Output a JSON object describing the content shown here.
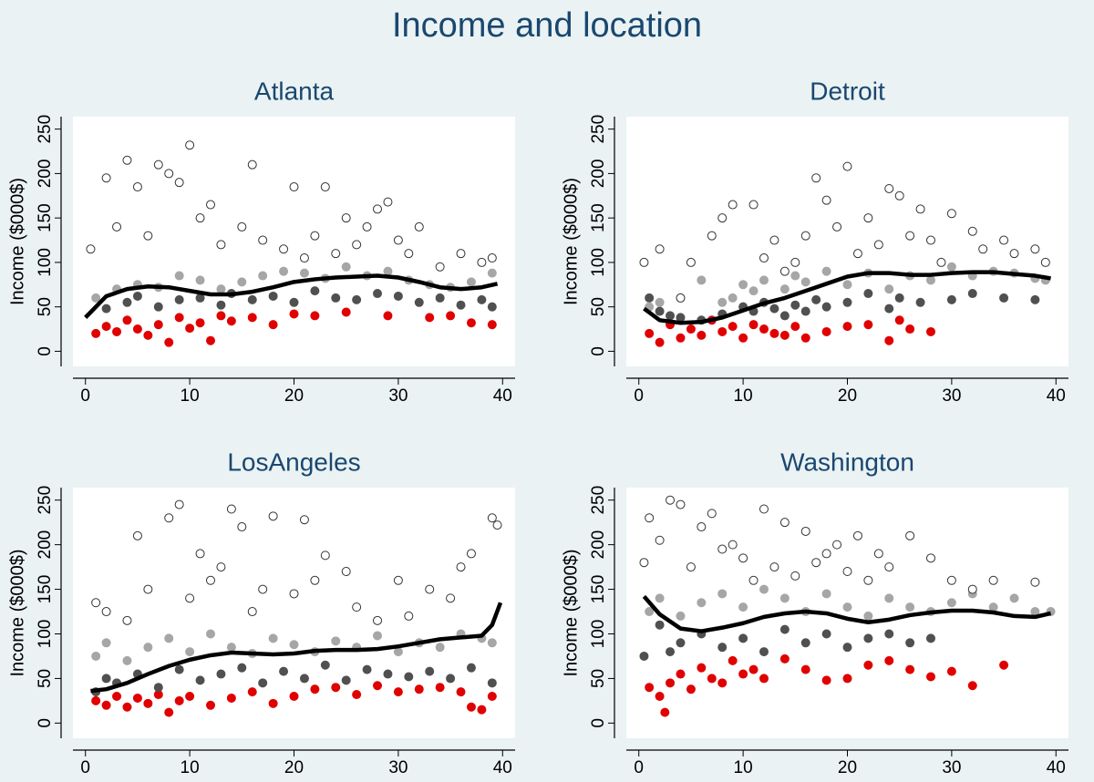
{
  "title": "Income and location",
  "chart_data": [
    {
      "type": "scatter",
      "title": "Atlanta",
      "ylabel": "Income ($000$)",
      "xlim": [
        -1.2,
        41.2
      ],
      "ylim": [
        -17,
        264
      ],
      "xticks": [
        0,
        10,
        20,
        30,
        40
      ],
      "yticks": [
        0,
        50,
        100,
        150,
        200,
        250
      ],
      "series": [
        {
          "color": "#e00000",
          "x": [
            1,
            2,
            3,
            4,
            5,
            6,
            7,
            8,
            9,
            10,
            11,
            12,
            13,
            14,
            16,
            18,
            20,
            22,
            25,
            29,
            33,
            35,
            37,
            39
          ],
          "values": [
            20,
            28,
            22,
            35,
            25,
            18,
            30,
            10,
            38,
            26,
            32,
            12,
            40,
            34,
            38,
            30,
            42,
            40,
            44,
            40,
            38,
            40,
            32,
            30
          ]
        },
        {
          "color": "#505050",
          "x": [
            2,
            4,
            5,
            7,
            9,
            11,
            13,
            14,
            16,
            18,
            20,
            22,
            24,
            26,
            28,
            30,
            32,
            34,
            36,
            38,
            39
          ],
          "values": [
            48,
            55,
            62,
            50,
            58,
            60,
            52,
            65,
            58,
            62,
            55,
            68,
            60,
            58,
            65,
            62,
            55,
            60,
            52,
            58,
            50
          ]
        },
        {
          "color": "#a6a6a6",
          "x": [
            1,
            3,
            5,
            7,
            9,
            11,
            13,
            15,
            17,
            19,
            21,
            23,
            25,
            27,
            29,
            31,
            33,
            35,
            37,
            39
          ],
          "values": [
            60,
            70,
            75,
            72,
            85,
            80,
            70,
            78,
            85,
            90,
            88,
            82,
            95,
            85,
            90,
            80,
            75,
            72,
            78,
            88
          ]
        },
        {
          "color": "#ffffff",
          "edgecolor": "#333333",
          "x": [
            0.5,
            2,
            3,
            4,
            5,
            6,
            7,
            8,
            9,
            10,
            11,
            12,
            13,
            15,
            16,
            17,
            19,
            20,
            21,
            22,
            23,
            24,
            25,
            26,
            27,
            28,
            29,
            30,
            31,
            32,
            34,
            36,
            38,
            39
          ],
          "values": [
            115,
            195,
            140,
            215,
            185,
            130,
            210,
            200,
            190,
            232,
            150,
            165,
            120,
            140,
            210,
            125,
            115,
            185,
            105,
            130,
            185,
            110,
            150,
            120,
            140,
            160,
            168,
            125,
            110,
            140,
            95,
            110,
            100,
            105
          ]
        },
        {
          "color": "#000000",
          "mode": "line",
          "x": [
            0,
            2,
            4,
            6,
            8,
            10,
            12,
            14,
            16,
            18,
            20,
            22,
            24,
            26,
            28,
            30,
            32,
            34,
            36,
            38,
            39.5
          ],
          "values": [
            38,
            62,
            70,
            73,
            72,
            68,
            64,
            64,
            67,
            72,
            78,
            81,
            83,
            84,
            85,
            83,
            78,
            72,
            70,
            72,
            76
          ]
        }
      ]
    },
    {
      "type": "scatter",
      "title": "Detroit",
      "ylabel": "Income ($000$)",
      "xlim": [
        -1.2,
        41.2
      ],
      "ylim": [
        -17,
        264
      ],
      "xticks": [
        0,
        10,
        20,
        30,
        40
      ],
      "yticks": [
        0,
        50,
        100,
        150,
        200,
        250
      ],
      "series": [
        {
          "color": "#e00000",
          "x": [
            1,
            2,
            3,
            4,
            5,
            6,
            7,
            8,
            9,
            10,
            11,
            12,
            13,
            14,
            15,
            16,
            18,
            20,
            22,
            24,
            25,
            26,
            28
          ],
          "values": [
            20,
            10,
            30,
            15,
            25,
            18,
            35,
            22,
            28,
            15,
            30,
            25,
            20,
            18,
            28,
            15,
            22,
            28,
            30,
            12,
            35,
            25,
            22
          ]
        },
        {
          "color": "#505050",
          "x": [
            1,
            2,
            3,
            4,
            6,
            8,
            10,
            11,
            12,
            13,
            14,
            15,
            16,
            17,
            18,
            20,
            22,
            24,
            25,
            27,
            30,
            32,
            35,
            38
          ],
          "values": [
            60,
            45,
            40,
            38,
            35,
            42,
            50,
            45,
            55,
            48,
            40,
            52,
            45,
            58,
            50,
            55,
            65,
            48,
            60,
            55,
            58,
            65,
            60,
            58
          ]
        },
        {
          "color": "#a6a6a6",
          "x": [
            1,
            2,
            4,
            6,
            8,
            9,
            10,
            11,
            12,
            14,
            15,
            16,
            18,
            20,
            22,
            24,
            26,
            28,
            30,
            32,
            34,
            36,
            38,
            39
          ],
          "values": [
            50,
            55,
            60,
            80,
            55,
            60,
            75,
            68,
            80,
            70,
            85,
            78,
            90,
            75,
            88,
            70,
            85,
            80,
            95,
            85,
            90,
            88,
            82,
            80
          ]
        },
        {
          "color": "#ffffff",
          "edgecolor": "#333333",
          "x": [
            0.5,
            2,
            4,
            5,
            7,
            8,
            9,
            11,
            12,
            13,
            14,
            15,
            16,
            17,
            18,
            19,
            20,
            21,
            22,
            23,
            24,
            25,
            26,
            27,
            28,
            29,
            30,
            32,
            33,
            35,
            36,
            38,
            39
          ],
          "values": [
            100,
            115,
            60,
            100,
            130,
            150,
            165,
            165,
            105,
            125,
            90,
            100,
            130,
            195,
            170,
            140,
            208,
            110,
            150,
            120,
            183,
            175,
            130,
            160,
            125,
            100,
            155,
            135,
            115,
            125,
            110,
            115,
            100
          ]
        },
        {
          "color": "#000000",
          "mode": "line",
          "x": [
            0.5,
            2,
            4,
            6,
            8,
            10,
            12,
            14,
            16,
            18,
            20,
            22,
            24,
            26,
            28,
            30,
            32,
            34,
            36,
            38,
            39.5
          ],
          "values": [
            48,
            35,
            32,
            33,
            38,
            46,
            54,
            60,
            68,
            76,
            84,
            88,
            88,
            86,
            86,
            88,
            89,
            89,
            87,
            85,
            82
          ]
        }
      ]
    },
    {
      "type": "scatter",
      "title": "LosAngeles",
      "ylabel": "Income ($000$)",
      "xlim": [
        -1.2,
        41.2
      ],
      "ylim": [
        -17,
        264
      ],
      "xticks": [
        0,
        10,
        20,
        30,
        40
      ],
      "yticks": [
        0,
        50,
        100,
        150,
        200,
        250
      ],
      "series": [
        {
          "color": "#e00000",
          "x": [
            1,
            2,
            3,
            4,
            5,
            6,
            7,
            8,
            9,
            10,
            12,
            14,
            16,
            18,
            20,
            22,
            24,
            26,
            28,
            30,
            32,
            34,
            36,
            37,
            38,
            39
          ],
          "values": [
            25,
            20,
            30,
            18,
            28,
            22,
            32,
            12,
            25,
            30,
            20,
            28,
            35,
            22,
            30,
            38,
            40,
            32,
            42,
            35,
            38,
            40,
            35,
            18,
            15,
            30
          ]
        },
        {
          "color": "#505050",
          "x": [
            1,
            2,
            3,
            5,
            7,
            9,
            11,
            13,
            15,
            17,
            19,
            21,
            23,
            25,
            27,
            29,
            31,
            33,
            35,
            37,
            39
          ],
          "values": [
            35,
            50,
            45,
            55,
            40,
            60,
            48,
            55,
            62,
            45,
            58,
            50,
            65,
            48,
            60,
            55,
            52,
            58,
            50,
            62,
            45
          ]
        },
        {
          "color": "#a6a6a6",
          "x": [
            1,
            2,
            4,
            6,
            8,
            10,
            12,
            14,
            16,
            18,
            20,
            22,
            24,
            26,
            28,
            30,
            32,
            34,
            36,
            38,
            39
          ],
          "values": [
            75,
            90,
            70,
            85,
            95,
            80,
            100,
            85,
            78,
            95,
            88,
            80,
            92,
            85,
            98,
            80,
            90,
            85,
            100,
            95,
            90
          ]
        },
        {
          "color": "#ffffff",
          "edgecolor": "#333333",
          "x": [
            1,
            2,
            4,
            5,
            6,
            8,
            9,
            10,
            11,
            12,
            13,
            14,
            15,
            16,
            17,
            18,
            20,
            21,
            22,
            23,
            25,
            26,
            28,
            30,
            31,
            33,
            35,
            36,
            37,
            39,
            39.5
          ],
          "values": [
            135,
            125,
            115,
            210,
            150,
            230,
            245,
            140,
            190,
            160,
            175,
            240,
            220,
            125,
            150,
            232,
            145,
            228,
            160,
            188,
            170,
            130,
            115,
            160,
            120,
            150,
            140,
            175,
            190,
            230,
            222
          ]
        },
        {
          "color": "#000000",
          "mode": "line",
          "x": [
            0.5,
            2,
            4,
            6,
            8,
            10,
            12,
            14,
            16,
            18,
            20,
            22,
            24,
            26,
            28,
            30,
            32,
            34,
            36,
            38,
            39,
            39.8
          ],
          "values": [
            36,
            38,
            45,
            55,
            64,
            71,
            76,
            79,
            78,
            77,
            78,
            81,
            82,
            82,
            83,
            86,
            90,
            94,
            96,
            98,
            110,
            135
          ]
        }
      ]
    },
    {
      "type": "scatter",
      "title": "Washington",
      "ylabel": "Income ($000$)",
      "xlim": [
        -1.2,
        41.2
      ],
      "ylim": [
        -17,
        264
      ],
      "xticks": [
        0,
        10,
        20,
        30,
        40
      ],
      "yticks": [
        0,
        50,
        100,
        150,
        200,
        250
      ],
      "series": [
        {
          "color": "#e00000",
          "x": [
            1,
            2,
            2.5,
            3,
            4,
            5,
            6,
            7,
            8,
            9,
            10,
            11,
            12,
            14,
            16,
            18,
            20,
            22,
            24,
            26,
            28,
            30,
            32,
            35
          ],
          "values": [
            40,
            30,
            12,
            45,
            55,
            38,
            62,
            50,
            45,
            70,
            55,
            60,
            50,
            72,
            60,
            48,
            50,
            65,
            70,
            60,
            52,
            58,
            42,
            65
          ]
        },
        {
          "color": "#505050",
          "x": [
            0.5,
            2,
            3,
            4,
            6,
            8,
            10,
            12,
            14,
            16,
            18,
            20,
            22,
            24,
            26,
            28
          ],
          "values": [
            75,
            110,
            80,
            90,
            100,
            85,
            95,
            80,
            105,
            90,
            100,
            85,
            95,
            100,
            90,
            95
          ]
        },
        {
          "color": "#a6a6a6",
          "x": [
            1,
            2,
            4,
            6,
            8,
            10,
            12,
            14,
            16,
            18,
            20,
            22,
            24,
            26,
            28,
            30,
            32,
            34,
            36,
            38,
            39.5
          ],
          "values": [
            125,
            140,
            120,
            135,
            145,
            130,
            150,
            140,
            125,
            145,
            130,
            120,
            140,
            130,
            125,
            135,
            145,
            130,
            140,
            125,
            125
          ]
        },
        {
          "color": "#ffffff",
          "edgecolor": "#333333",
          "x": [
            0.5,
            1,
            2,
            3,
            4,
            5,
            6,
            7,
            8,
            9,
            10,
            11,
            12,
            13,
            14,
            15,
            16,
            17,
            18,
            19,
            20,
            21,
            22,
            23,
            24,
            26,
            28,
            30,
            32,
            34,
            38
          ],
          "values": [
            180,
            230,
            205,
            250,
            245,
            175,
            220,
            235,
            195,
            200,
            185,
            160,
            240,
            175,
            225,
            165,
            215,
            180,
            190,
            200,
            170,
            210,
            160,
            190,
            175,
            210,
            185,
            160,
            150,
            160,
            158
          ]
        },
        {
          "color": "#000000",
          "mode": "line",
          "x": [
            0.5,
            2,
            4,
            6,
            8,
            10,
            12,
            14,
            16,
            18,
            20,
            22,
            24,
            26,
            28,
            30,
            32,
            34,
            36,
            38,
            39.5
          ],
          "values": [
            142,
            122,
            106,
            103,
            107,
            112,
            119,
            123,
            125,
            123,
            117,
            113,
            116,
            121,
            124,
            126,
            126,
            124,
            120,
            119,
            123
          ]
        }
      ]
    }
  ]
}
